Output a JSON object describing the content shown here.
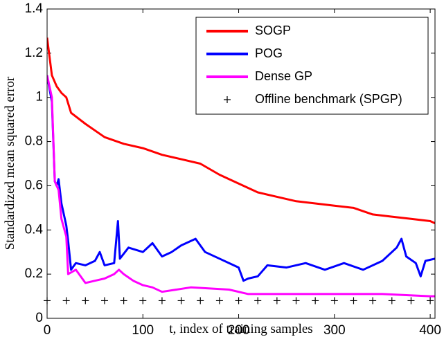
{
  "chart_data": {
    "type": "line",
    "xlabel": "t, index of training samples",
    "ylabel": "Standardized mean squared error",
    "xlim": [
      0,
      405
    ],
    "ylim": [
      0,
      1.4
    ],
    "xticks": [
      0,
      100,
      200,
      300,
      400
    ],
    "yticks": [
      0,
      0.2,
      0.4,
      0.6,
      0.8,
      1,
      1.2,
      1.4
    ],
    "grid": false,
    "legend": "upper right",
    "series": [
      {
        "name": "SOGP",
        "color": "#ff0000",
        "style": "line",
        "x": [
          0,
          5,
          10,
          15,
          20,
          25,
          40,
          60,
          80,
          100,
          120,
          140,
          160,
          180,
          200,
          220,
          240,
          260,
          280,
          300,
          320,
          340,
          360,
          380,
          400,
          405
        ],
        "values": [
          1.27,
          1.1,
          1.05,
          1.02,
          1.0,
          0.93,
          0.88,
          0.82,
          0.79,
          0.77,
          0.74,
          0.72,
          0.7,
          0.65,
          0.61,
          0.57,
          0.55,
          0.53,
          0.52,
          0.51,
          0.5,
          0.47,
          0.46,
          0.45,
          0.44,
          0.43
        ]
      },
      {
        "name": "POG",
        "color": "#0000ff",
        "style": "line",
        "x": [
          0,
          5,
          8,
          10,
          12,
          15,
          20,
          22,
          25,
          30,
          40,
          50,
          55,
          60,
          70,
          74,
          76,
          85,
          100,
          110,
          120,
          130,
          140,
          155,
          165,
          180,
          200,
          205,
          210,
          220,
          230,
          250,
          270,
          290,
          310,
          330,
          350,
          365,
          370,
          375,
          385,
          390,
          395,
          405
        ],
        "values": [
          1.1,
          0.98,
          0.62,
          0.6,
          0.63,
          0.52,
          0.42,
          0.35,
          0.22,
          0.25,
          0.24,
          0.26,
          0.3,
          0.24,
          0.25,
          0.44,
          0.27,
          0.32,
          0.3,
          0.34,
          0.28,
          0.3,
          0.33,
          0.36,
          0.3,
          0.27,
          0.23,
          0.17,
          0.18,
          0.19,
          0.24,
          0.23,
          0.25,
          0.22,
          0.25,
          0.22,
          0.26,
          0.32,
          0.36,
          0.28,
          0.25,
          0.19,
          0.26,
          0.27
        ]
      },
      {
        "name": "Dense GP",
        "color": "#ff00ff",
        "style": "line",
        "x": [
          0,
          5,
          8,
          12,
          15,
          20,
          22,
          30,
          40,
          50,
          60,
          70,
          75,
          80,
          90,
          100,
          110,
          120,
          150,
          190,
          210,
          250,
          300,
          350,
          400,
          405
        ],
        "values": [
          1.1,
          1.0,
          0.62,
          0.58,
          0.45,
          0.37,
          0.2,
          0.22,
          0.16,
          0.17,
          0.18,
          0.2,
          0.22,
          0.2,
          0.17,
          0.15,
          0.14,
          0.12,
          0.14,
          0.13,
          0.11,
          0.11,
          0.11,
          0.11,
          0.1,
          0.1
        ]
      },
      {
        "name": "Offline benchmark (SPGP)",
        "color": "#000000",
        "style": "marker",
        "x": [
          0,
          20,
          40,
          60,
          80,
          100,
          120,
          140,
          160,
          180,
          200,
          220,
          240,
          260,
          280,
          300,
          320,
          340,
          360,
          380,
          400
        ],
        "values": [
          0.08,
          0.08,
          0.08,
          0.08,
          0.08,
          0.08,
          0.08,
          0.08,
          0.08,
          0.08,
          0.08,
          0.08,
          0.08,
          0.08,
          0.08,
          0.08,
          0.08,
          0.08,
          0.08,
          0.08,
          0.08
        ]
      }
    ]
  }
}
